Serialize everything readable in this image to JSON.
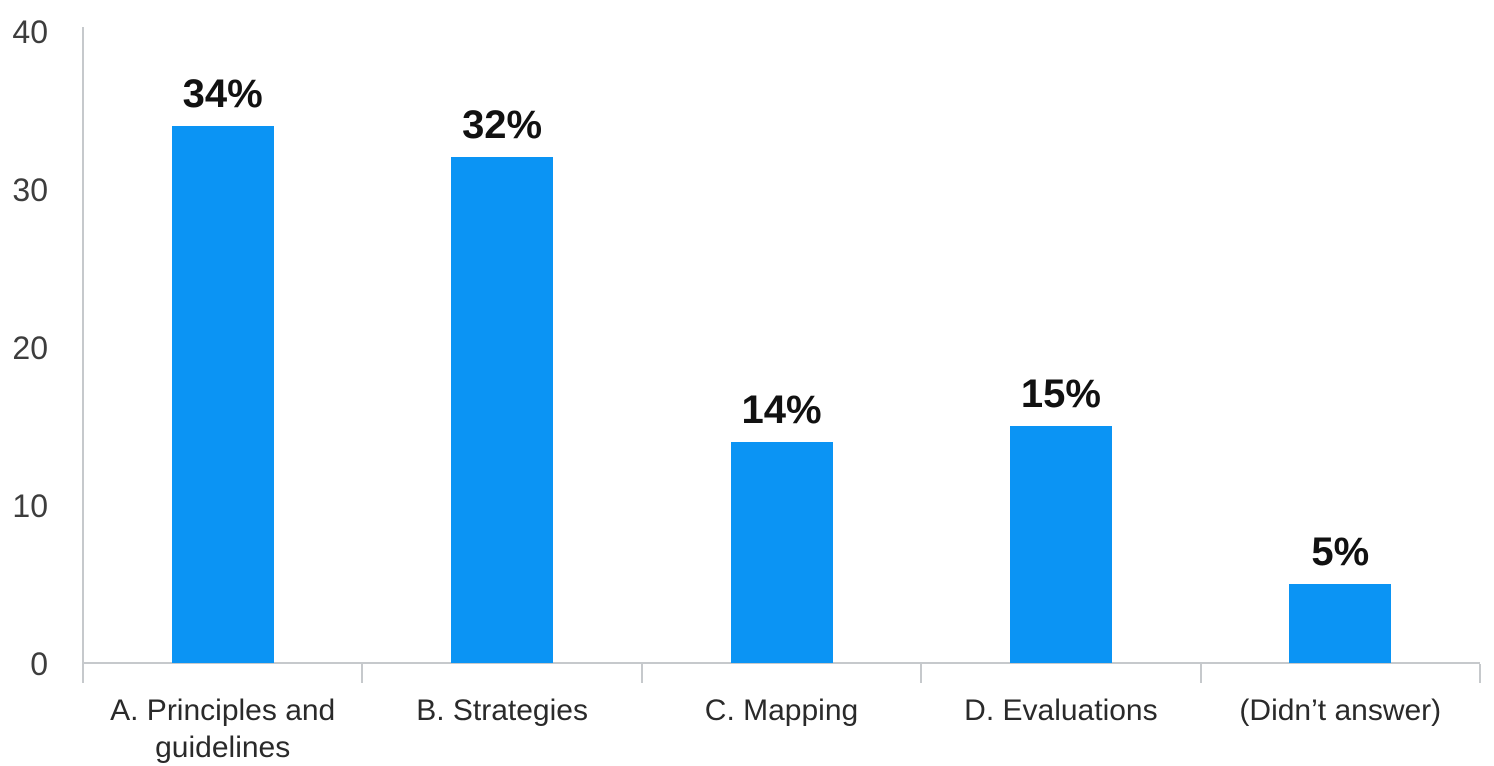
{
  "chart_data": {
    "type": "bar",
    "title": "",
    "xlabel": "",
    "ylabel": "",
    "categories": [
      "A. Principles and guidelines",
      "B. Strategies",
      "C. Mapping",
      "D. Evaluations",
      "(Didn’t answer)"
    ],
    "values": [
      34,
      32,
      14,
      15,
      5
    ],
    "value_labels": [
      "34%",
      "32%",
      "14%",
      "15%",
      "5%"
    ],
    "yticks": [
      0,
      10,
      20,
      30,
      40
    ],
    "ylim": [
      0,
      40
    ],
    "grid": false,
    "legend_position": "none",
    "colors": {
      "bar": "#0b94f4",
      "axis": "#c6c9cc",
      "y_tick_label": "#3d3d3d",
      "category_label": "#2a2a2a",
      "value_label": "#111111"
    }
  }
}
